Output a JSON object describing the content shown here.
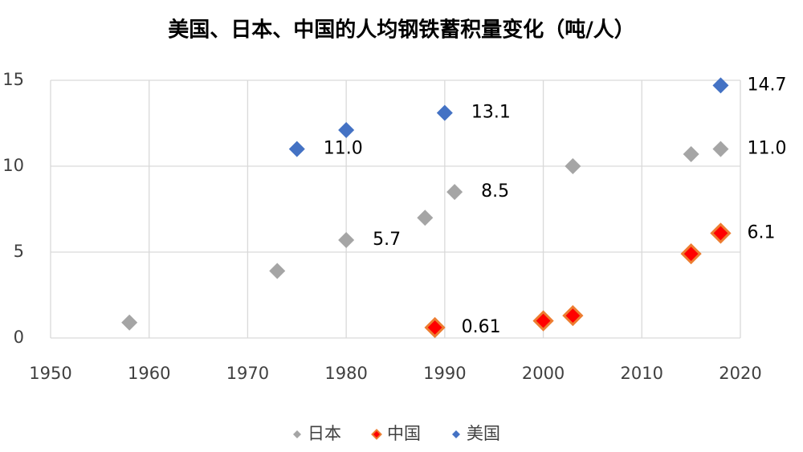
{
  "chart_data": {
    "type": "scatter",
    "title": "美国、日本、中国的人均钢铁蓄积量变化（吨/人）",
    "xlim": [
      1950,
      2020
    ],
    "xticks": [
      1950,
      1960,
      1970,
      1980,
      1990,
      2000,
      2010,
      2020
    ],
    "ylim": [
      0,
      15
    ],
    "yticks": [
      0,
      5,
      10,
      15
    ],
    "grid": true,
    "legend": "bottom",
    "series": [
      {
        "name": "日本",
        "color": "#a5a5a5",
        "x": [
          1958,
          1973,
          1980,
          1988,
          1991,
          2003,
          2015,
          2018
        ],
        "values": [
          0.9,
          3.9,
          5.7,
          7.0,
          8.5,
          10.0,
          10.7,
          11.0
        ],
        "value_labels": [
          null,
          null,
          "5.7",
          null,
          "8.5",
          null,
          null,
          "11.0"
        ]
      },
      {
        "name": "中国",
        "color": "#ff0000",
        "edgecolor": "#ed7d31",
        "x": [
          1989,
          2000,
          2003,
          2015,
          2018
        ],
        "values": [
          0.61,
          1.0,
          1.3,
          4.9,
          6.1
        ],
        "value_labels": [
          "0.61",
          null,
          null,
          null,
          "6.1"
        ]
      },
      {
        "name": "美国",
        "color": "#4472c4",
        "x": [
          1975,
          1980,
          1990,
          2018
        ],
        "values": [
          11.0,
          12.1,
          13.1,
          14.7
        ],
        "value_labels": [
          "11.0",
          null,
          "13.1",
          "14.7"
        ]
      }
    ]
  }
}
